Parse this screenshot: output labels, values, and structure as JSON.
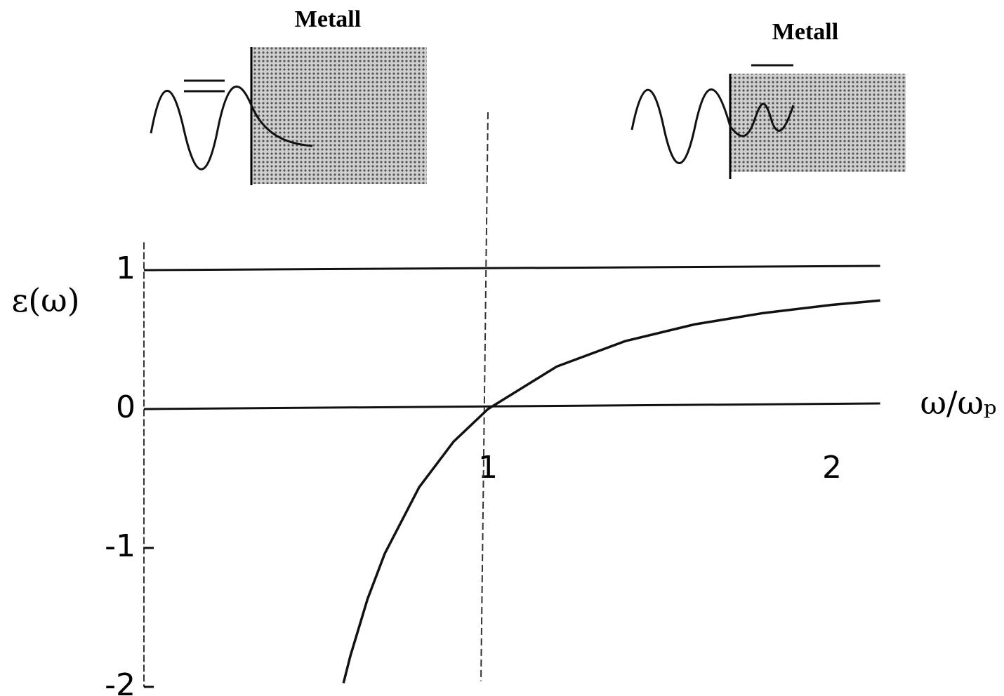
{
  "chart_data": {
    "type": "line",
    "ylabel": "ε(ω)",
    "xlabel": "ω/ωₚ",
    "annotations": [
      "Metall",
      "Metall"
    ],
    "x": [
      0.58,
      0.6,
      0.65,
      0.7,
      0.8,
      0.9,
      1,
      1.2,
      1.4,
      1.6,
      1.8,
      2,
      2.14
    ],
    "series": [
      {
        "color": "#111111",
        "values": [
          -1.973,
          -1.778,
          -1.367,
          -1.041,
          -0.5625,
          -0.235,
          0,
          0.306,
          0.49,
          0.609,
          0.691,
          0.75,
          0.782
        ]
      }
    ],
    "hlines": [
      1
    ],
    "vlines": [
      1
    ],
    "xlim": [
      0,
      2.14
    ],
    "ylim": [
      -2,
      1.2
    ],
    "xticks": [
      1,
      2
    ],
    "yticks": [
      -2,
      -1,
      0,
      1
    ]
  }
}
